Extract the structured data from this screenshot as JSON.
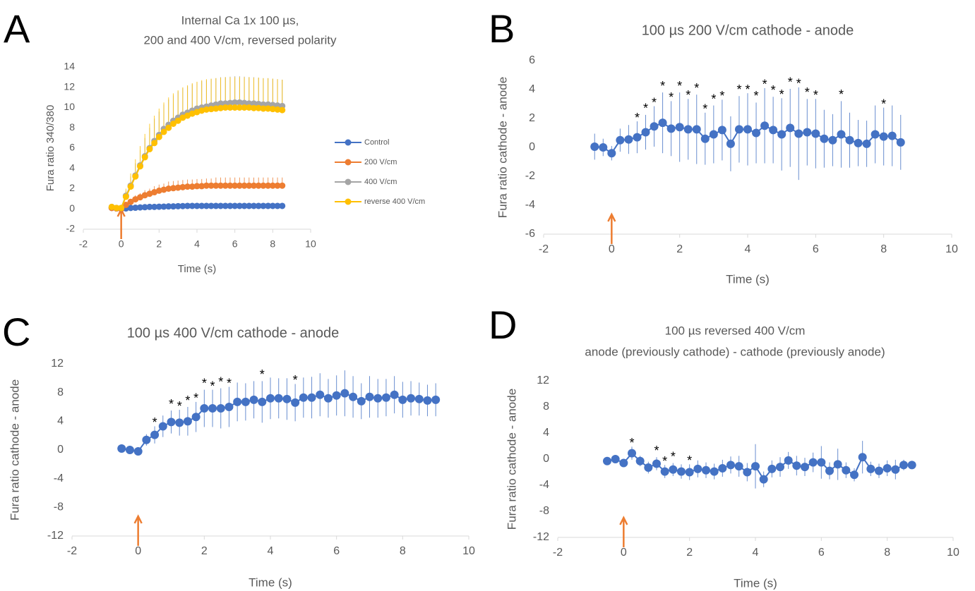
{
  "chart_data": [
    {
      "type": "line",
      "label": "A",
      "title": [
        "Internal Ca 1x 100 µs,",
        "200 and 400 V/cm, reversed polarity"
      ],
      "x_label": "Time (s)",
      "y_label": "Fura ratio 340/380",
      "x": [
        -0.5,
        -0.25,
        0,
        0.25,
        0.5,
        0.75,
        1,
        1.25,
        1.5,
        1.75,
        2,
        2.25,
        2.5,
        2.75,
        3,
        3.25,
        3.5,
        3.75,
        4,
        4.25,
        4.5,
        4.75,
        5,
        5.25,
        5.5,
        5.75,
        6,
        6.25,
        6.5,
        6.75,
        7,
        7.25,
        7.5,
        7.75,
        8,
        8.25,
        8.5
      ],
      "xlim": [
        -2,
        10
      ],
      "xticks": [
        -2,
        0,
        2,
        4,
        6,
        8,
        10
      ],
      "ylim": [
        -2,
        14
      ],
      "yticks": [
        -2,
        0,
        2,
        4,
        6,
        8,
        10,
        12,
        14
      ],
      "error_bars": "plus",
      "legend": "right",
      "series": [
        {
          "name": "Control",
          "color": "#4472c4",
          "values": [
            0.1,
            0.05,
            0,
            0.05,
            0.1,
            0.12,
            0.15,
            0.17,
            0.2,
            0.2,
            0.22,
            0.23,
            0.25,
            0.25,
            0.27,
            0.28,
            0.3,
            0.3,
            0.3,
            0.3,
            0.3,
            0.3,
            0.3,
            0.3,
            0.3,
            0.3,
            0.3,
            0.3,
            0.3,
            0.3,
            0.3,
            0.3,
            0.3,
            0.3,
            0.3,
            0.3,
            0.3
          ],
          "errors": [
            0.1,
            0.1,
            0.1,
            0.15,
            0.15,
            0.15,
            0.15,
            0.15,
            0.2,
            0.2,
            0.2,
            0.2,
            0.2,
            0.2,
            0.2,
            0.2,
            0.3,
            0.3,
            0.3,
            0.3,
            0.3,
            0.3,
            0.3,
            0.3,
            0.3,
            0.3,
            0.3,
            0.3,
            0.3,
            0.3,
            0.3,
            0.3,
            0.3,
            0.3,
            0.3,
            0.3,
            0.3
          ]
        },
        {
          "name": "200 V/cm",
          "color": "#ed7d31",
          "values": [
            0.1,
            0.05,
            0,
            0.4,
            0.7,
            0.95,
            1.15,
            1.35,
            1.5,
            1.65,
            1.8,
            1.9,
            2.0,
            2.05,
            2.1,
            2.15,
            2.2,
            2.2,
            2.25,
            2.25,
            2.3,
            2.3,
            2.3,
            2.3,
            2.3,
            2.3,
            2.3,
            2.3,
            2.3,
            2.3,
            2.3,
            2.3,
            2.3,
            2.3,
            2.3,
            2.3,
            2.3
          ],
          "errors": [
            0.1,
            0.1,
            0.1,
            0.2,
            0.3,
            0.4,
            0.4,
            0.5,
            0.5,
            0.6,
            0.6,
            0.6,
            0.7,
            0.7,
            0.7,
            0.7,
            0.7,
            0.7,
            0.7,
            0.7,
            0.7,
            0.7,
            0.8,
            0.8,
            0.8,
            0.8,
            0.8,
            0.8,
            0.8,
            0.8,
            0.8,
            0.8,
            0.8,
            0.8,
            0.8,
            0.8,
            0.8
          ]
        },
        {
          "name": "400 V/cm",
          "color": "#a5a5a5",
          "values": [
            0.2,
            0.1,
            0.1,
            1.3,
            2.3,
            3.3,
            4.3,
            5.2,
            6.0,
            6.7,
            7.3,
            7.9,
            8.3,
            8.7,
            9.0,
            9.3,
            9.5,
            9.7,
            9.9,
            10.0,
            10.1,
            10.2,
            10.3,
            10.4,
            10.4,
            10.45,
            10.5,
            10.5,
            10.45,
            10.4,
            10.4,
            10.35,
            10.3,
            10.3,
            10.25,
            10.2,
            10.15
          ],
          "errors": [
            0.2,
            0.1,
            0.1,
            0.5,
            0.9,
            1.2,
            1.5,
            1.8,
            2.0,
            2.2,
            2.3,
            2.4,
            2.5,
            2.5,
            2.6,
            2.6,
            2.6,
            2.6,
            2.6,
            2.6,
            2.6,
            2.6,
            2.6,
            2.6,
            2.6,
            2.6,
            2.6,
            2.6,
            2.6,
            2.6,
            2.6,
            2.6,
            2.6,
            2.6,
            2.6,
            2.6,
            2.6
          ]
        },
        {
          "name": "reverse 400 V/cm",
          "color": "#ffc000",
          "values": [
            0.2,
            0.1,
            0.1,
            1.2,
            2.2,
            3.2,
            4.2,
            5.1,
            5.9,
            6.5,
            7.1,
            7.6,
            8.0,
            8.4,
            8.7,
            9.0,
            9.2,
            9.4,
            9.55,
            9.7,
            9.8,
            9.85,
            9.9,
            9.95,
            10.0,
            10.0,
            10.0,
            10.0,
            10.0,
            10.0,
            9.95,
            9.95,
            9.9,
            9.9,
            9.85,
            9.8,
            9.75
          ],
          "errors": [
            0.2,
            0.1,
            0.1,
            0.8,
            1.3,
            1.7,
            2.0,
            2.3,
            2.5,
            2.7,
            2.8,
            2.9,
            3.0,
            3.0,
            3.0,
            3.0,
            3.0,
            3.0,
            3.0,
            3.0,
            3.0,
            3.0,
            3.0,
            3.0,
            3.0,
            3.0,
            3.0,
            3.0,
            3.0,
            3.0,
            3.0,
            3.0,
            3.0,
            3.0,
            3.0,
            3.0,
            3.0
          ]
        }
      ],
      "annotations": []
    },
    {
      "type": "line",
      "label": "B",
      "title": [
        "100 µs 200 V/cm cathode - anode"
      ],
      "x_label": "Time (s)",
      "y_label": "Fura ratio cathode - anode",
      "x": [
        -0.5,
        -0.25,
        0,
        0.25,
        0.5,
        0.75,
        1,
        1.25,
        1.5,
        1.75,
        2,
        2.25,
        2.5,
        2.75,
        3,
        3.25,
        3.5,
        3.75,
        4,
        4.25,
        4.5,
        4.75,
        5,
        5.25,
        5.5,
        5.75,
        6,
        6.25,
        6.5,
        6.75,
        7,
        7.25,
        7.5,
        7.75,
        8,
        8.25,
        8.5
      ],
      "xlim": [
        -2,
        10
      ],
      "xticks": [
        -2,
        0,
        2,
        4,
        6,
        8,
        10
      ],
      "ylim": [
        -6,
        6
      ],
      "yticks": [
        -6,
        -4,
        -2,
        0,
        2,
        4,
        6
      ],
      "error_bars": "both",
      "series": [
        {
          "color": "#4472c4",
          "values": [
            0.05,
            0,
            -0.4,
            0.5,
            0.55,
            0.7,
            1.05,
            1.45,
            1.7,
            1.3,
            1.4,
            1.25,
            1.25,
            0.6,
            0.9,
            1.2,
            0.25,
            1.25,
            1.25,
            1.0,
            1.5,
            1.2,
            0.9,
            1.35,
            0.95,
            1.05,
            0.95,
            0.6,
            0.5,
            0.9,
            0.5,
            0.3,
            0.25,
            0.9,
            0.75,
            0.8,
            0.35
          ],
          "errors": [
            0.9,
            0.6,
            0.5,
            0.8,
            1.0,
            1.1,
            1.2,
            1.4,
            2.1,
            1.9,
            2.4,
            2.1,
            2.4,
            1.8,
            2.0,
            2.1,
            1.9,
            2.3,
            2.5,
            2.1,
            2.6,
            2.3,
            2.5,
            2.7,
            3.2,
            2.3,
            2.4,
            2.0,
            1.8,
            2.3,
            1.9,
            1.6,
            1.6,
            2.0,
            2.0,
            2.1,
            1.9
          ]
        }
      ],
      "annotations": [
        {
          "text": "*",
          "x": 0.75
        },
        {
          "text": "*",
          "x": 1
        },
        {
          "text": "*",
          "x": 1.25
        },
        {
          "text": "*",
          "x": 1.5
        },
        {
          "text": "*",
          "x": 1.75
        },
        {
          "text": "*",
          "x": 2
        },
        {
          "text": "*",
          "x": 2.25
        },
        {
          "text": "*",
          "x": 2.5
        },
        {
          "text": "*",
          "x": 2.75
        },
        {
          "text": "*",
          "x": 3
        },
        {
          "text": "*",
          "x": 3.25
        },
        {
          "text": "*",
          "x": 3.75
        },
        {
          "text": "*",
          "x": 4
        },
        {
          "text": "*",
          "x": 4.25
        },
        {
          "text": "*",
          "x": 4.5
        },
        {
          "text": "*",
          "x": 4.75
        },
        {
          "text": "*",
          "x": 5
        },
        {
          "text": "*",
          "x": 5.25
        },
        {
          "text": "*",
          "x": 5.5
        },
        {
          "text": "*",
          "x": 5.75
        },
        {
          "text": "*",
          "x": 6
        },
        {
          "text": "*",
          "x": 6.75
        },
        {
          "text": "*",
          "x": 8
        }
      ]
    },
    {
      "type": "line",
      "label": "C",
      "title": [
        "100 µs 400 V/cm cathode - anode"
      ],
      "x_label": "Time (s)",
      "y_label": "Fura ratio cathode - anode",
      "x": [
        -0.5,
        -0.25,
        0,
        0.25,
        0.5,
        0.75,
        1,
        1.25,
        1.5,
        1.75,
        2,
        2.25,
        2.5,
        2.75,
        3,
        3.25,
        3.5,
        3.75,
        4,
        4.25,
        4.5,
        4.75,
        5,
        5.25,
        5.5,
        5.75,
        6,
        6.25,
        6.5,
        6.75,
        7,
        7.25,
        7.5,
        7.75,
        8,
        8.25,
        8.5,
        8.75,
        9
      ],
      "xlim": [
        -2,
        10
      ],
      "xticks": [
        -2,
        0,
        2,
        4,
        6,
        8,
        10
      ],
      "ylim": [
        -12,
        12
      ],
      "yticks": [
        -12,
        -8,
        -4,
        0,
        4,
        8,
        12
      ],
      "error_bars": "both",
      "series": [
        {
          "color": "#4472c4",
          "values": [
            0.2,
            0,
            -0.2,
            1.4,
            2.1,
            3.3,
            3.9,
            3.8,
            4.0,
            4.6,
            5.8,
            5.8,
            5.8,
            6.0,
            6.7,
            6.7,
            7.0,
            6.7,
            7.2,
            7.2,
            7.1,
            6.6,
            7.3,
            7.3,
            7.7,
            7.2,
            7.6,
            7.9,
            7.4,
            6.8,
            7.4,
            7.2,
            7.3,
            7.7,
            7.0,
            7.2,
            7.1,
            6.9,
            7.0
          ],
          "errors": [
            0.5,
            0.4,
            0.5,
            0.8,
            1.2,
            1.5,
            1.6,
            1.8,
            2.0,
            2.1,
            2.6,
            2.6,
            2.8,
            2.8,
            2.7,
            2.6,
            2.6,
            2.9,
            2.9,
            2.8,
            2.9,
            2.6,
            2.8,
            2.9,
            3.0,
            2.7,
            2.8,
            3.2,
            2.9,
            2.5,
            2.9,
            2.7,
            2.6,
            2.6,
            2.5,
            2.4,
            2.3,
            2.2,
            2.3
          ]
        }
      ],
      "annotations": [
        {
          "text": "*",
          "x": 0.5
        },
        {
          "text": "*",
          "x": 1
        },
        {
          "text": "*",
          "x": 1.25
        },
        {
          "text": "*",
          "x": 1.5
        },
        {
          "text": "*",
          "x": 1.75
        },
        {
          "text": "*",
          "x": 2
        },
        {
          "text": "*",
          "x": 2.25
        },
        {
          "text": "*",
          "x": 2.5
        },
        {
          "text": "*",
          "x": 2.75
        },
        {
          "text": "*",
          "x": 3.75
        },
        {
          "text": "*",
          "x": 4.75
        }
      ]
    },
    {
      "type": "line",
      "label": "D",
      "title": [
        "100 µs reversed 400 V/cm",
        "anode (previously cathode) - cathode (previously anode)"
      ],
      "x_label": "Time (s)",
      "y_label": "Fura ratio cathode - anode",
      "x": [
        -0.5,
        -0.25,
        0,
        0.25,
        0.5,
        0.75,
        1,
        1.25,
        1.5,
        1.75,
        2,
        2.25,
        2.5,
        2.75,
        3,
        3.25,
        3.5,
        3.75,
        4,
        4.25,
        4.5,
        4.75,
        5,
        5.25,
        5.5,
        5.75,
        6,
        6.25,
        6.5,
        6.75,
        7,
        7.25,
        7.5,
        7.75,
        8,
        8.25,
        8.5,
        8.75
      ],
      "xlim": [
        -2,
        10
      ],
      "xticks": [
        -2,
        0,
        2,
        4,
        6,
        8,
        10
      ],
      "ylim": [
        -12,
        12
      ],
      "yticks": [
        -12,
        -8,
        -4,
        0,
        4,
        8,
        12
      ],
      "error_bars": "both",
      "series": [
        {
          "color": "#4472c4",
          "values": [
            -0.3,
            0,
            -0.6,
            0.9,
            -0.3,
            -1.3,
            -0.7,
            -1.9,
            -1.6,
            -1.9,
            -2.0,
            -1.5,
            -1.7,
            -1.9,
            -1.4,
            -0.9,
            -1.1,
            -2.0,
            -1.1,
            -3.1,
            -1.5,
            -1.2,
            -0.2,
            -1.0,
            -1.2,
            -0.5,
            -0.5,
            -1.8,
            -0.8,
            -1.7,
            -2.4,
            0.3,
            -1.5,
            -1.8,
            -1.4,
            -1.6,
            -0.9,
            -0.9
          ],
          "errors": [
            0.5,
            0.5,
            0.5,
            1.0,
            0.8,
            0.9,
            1.0,
            1.0,
            1.0,
            1.1,
            1.2,
            1.3,
            1.2,
            1.2,
            1.3,
            1.3,
            1.6,
            1.4,
            3.4,
            1.2,
            1.3,
            1.5,
            1.3,
            1.5,
            1.4,
            1.5,
            2.5,
            1.3,
            2.4,
            1.2,
            1.0,
            2.5,
            1.1,
            1.1,
            1.2,
            1.5,
            0.8,
            0.5
          ]
        }
      ],
      "annotations": [
        {
          "text": "*",
          "x": 0.25
        },
        {
          "text": "*",
          "x": 1
        },
        {
          "text": "*",
          "x": 1.25
        },
        {
          "text": "*",
          "x": 1.5
        },
        {
          "text": "*",
          "x": 2
        }
      ]
    }
  ]
}
